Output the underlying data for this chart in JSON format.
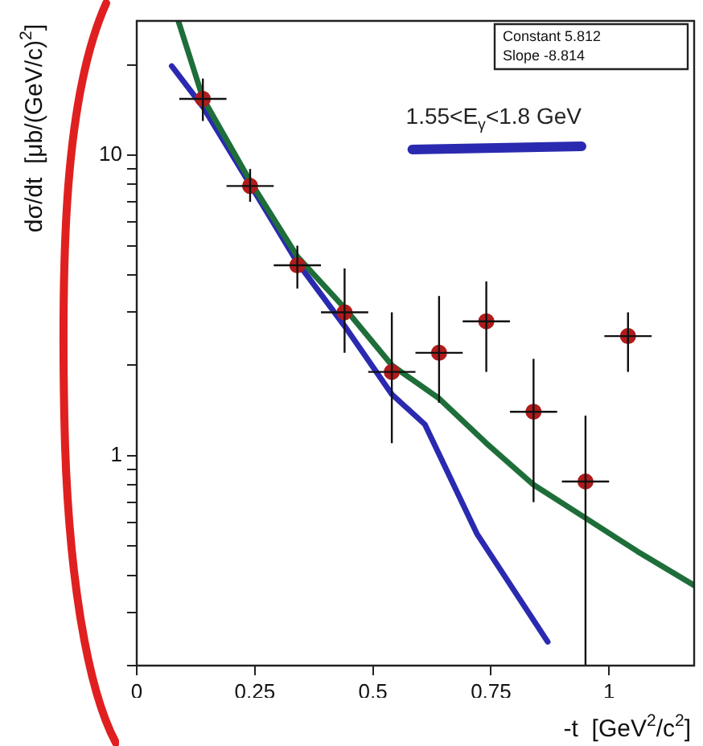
{
  "chart_data": {
    "type": "scatter",
    "xlabel": "-t  [GeV$^{2}$/c$^{2}$]",
    "ylabel": "dσ/dt  [μb/(GeV/c)$^{2}$]",
    "log": "y",
    "xlim": [
      0,
      1.18
    ],
    "xticks": [
      0,
      0.25,
      0.5,
      0.75,
      1
    ],
    "ylim": [
      0.2,
      28
    ],
    "yticks": [
      {
        "value": 0.2,
        "label": null
      },
      {
        "value": 0.3,
        "label": null
      },
      {
        "value": 0.4,
        "label": null
      },
      {
        "value": 0.5,
        "label": null
      },
      {
        "value": 0.6,
        "label": null
      },
      {
        "value": 0.7,
        "label": null
      },
      {
        "value": 0.8,
        "label": null
      },
      {
        "value": 0.9,
        "label": null
      },
      1,
      {
        "value": 2,
        "label": null
      },
      {
        "value": 3,
        "label": null
      },
      {
        "value": 4,
        "label": null
      },
      {
        "value": 5,
        "label": null
      },
      {
        "value": 6,
        "label": null
      },
      {
        "value": 7,
        "label": null
      },
      {
        "value": 8,
        "label": null
      },
      {
        "value": 9,
        "label": null
      },
      10,
      {
        "value": 20,
        "label": null
      }
    ],
    "legend": "top right",
    "annotations": [
      "Constant 5.812",
      "Slope -8.814"
    ],
    "series": [
      {
        "marker": "circle",
        "color": "#b01c1c",
        "x": [
          0.14,
          0.24,
          0.34,
          0.44,
          0.54,
          0.64,
          0.74,
          0.84,
          0.95,
          1.04
        ],
        "values": [
          15.4,
          7.9,
          4.3,
          3.0,
          1.9,
          2.2,
          2.8,
          1.4,
          0.82,
          2.5
        ],
        "errors": [
          [
            13,
            18
          ],
          [
            7,
            9
          ],
          [
            3.6,
            5
          ],
          [
            2.2,
            4.2
          ],
          [
            1.1,
            3.0
          ],
          [
            1.5,
            3.4
          ],
          [
            1.9,
            3.8
          ],
          [
            0.7,
            2.1
          ],
          [
            0.2,
            1.36
          ],
          [
            1.9,
            3.0
          ]
        ],
        "xerrors": [
          0.05,
          0.05,
          0.05,
          0.05,
          0.05,
          0.05,
          0.05,
          0.05,
          0.05,
          0.05
        ]
      },
      {
        "type": "line",
        "marker": "none",
        "color": "#1e6e3a",
        "x": [
          0.088,
          0.14,
          0.24,
          0.34,
          0.44,
          0.54,
          0.64,
          0.74,
          0.84,
          0.95,
          1.06,
          1.18
        ],
        "values": [
          28,
          15.5,
          8.2,
          4.6,
          3.1,
          2.0,
          1.55,
          1.1,
          0.8,
          0.62,
          0.48,
          0.37
        ]
      },
      {
        "type": "line",
        "marker": "none",
        "name": "1.55<E$_{γ}$<1.8 GeV",
        "color": "#2a2ab0",
        "x": [
          0.074,
          0.14,
          0.24,
          0.34,
          0.44,
          0.54,
          0.61,
          0.72,
          0.87
        ],
        "values": [
          19.8,
          14.5,
          8,
          4.4,
          2.7,
          1.6,
          1.27,
          0.55,
          0.24
        ]
      }
    ]
  }
}
